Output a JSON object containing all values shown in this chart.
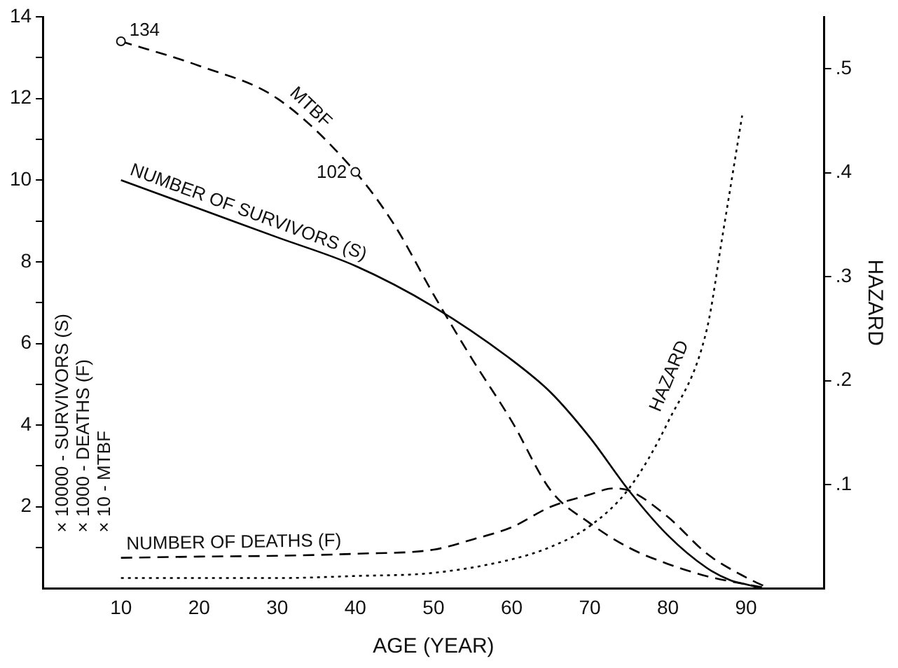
{
  "chart_data": {
    "type": "line",
    "xlabel": "AGE (YEAR)",
    "ylabel": "× 10000 - SURVIVORS (S)\n× 1000 - DEATHS (F)\n× 10 - MTBF",
    "y2label": "HAZARD",
    "xlim": [
      0,
      100
    ],
    "xticks": [
      10,
      20,
      30,
      40,
      50,
      60,
      70,
      80,
      90
    ],
    "ylim": [
      0,
      14
    ],
    "yticks": [
      {
        "value": 1,
        "label": null
      },
      2,
      {
        "value": 3,
        "label": null
      },
      4,
      {
        "value": 5,
        "label": null
      },
      6,
      {
        "value": 7,
        "label": null
      },
      8,
      {
        "value": 9,
        "label": null
      },
      10,
      {
        "value": 11,
        "label": null
      },
      12,
      {
        "value": 13,
        "label": null
      },
      14
    ],
    "y2lim": [
      0,
      0.55
    ],
    "y2ticks": [
      {
        "value": 0.1,
        "label": ".1"
      },
      {
        "value": 0.2,
        "label": ".2"
      },
      {
        "value": 0.3,
        "label": ".3"
      },
      {
        "value": 0.4,
        "label": ".4"
      },
      {
        "value": 0.5,
        "label": ".5"
      }
    ],
    "grid": false,
    "legend": false,
    "marker": "none",
    "series": [
      {
        "name": "NUMBER OF SURVIVORS (S)",
        "color": "#000000",
        "line_style": "solid",
        "x": [
          10,
          20,
          30,
          40,
          50,
          60,
          65,
          70,
          75,
          80,
          85,
          88,
          90,
          92
        ],
        "values": [
          10.0,
          9.3,
          8.6,
          7.9,
          6.9,
          5.6,
          4.8,
          3.7,
          2.4,
          1.3,
          0.5,
          0.2,
          0.1,
          0
        ]
      },
      {
        "name": "MTBF",
        "color": "#000000",
        "line_style": "dashed",
        "x": [
          10,
          20,
          30,
          40,
          45,
          50,
          55,
          60,
          65,
          70,
          75,
          80,
          85,
          90,
          93
        ],
        "values": [
          13.4,
          12.8,
          12.0,
          10.2,
          8.9,
          7.2,
          5.6,
          4.1,
          2.4,
          1.6,
          1.0,
          0.6,
          0.3,
          0.1,
          0
        ]
      },
      {
        "name": "NUMBER OF DEATHS (F)",
        "color": "#000000",
        "line_style": "dashed",
        "x": [
          10,
          20,
          30,
          40,
          50,
          55,
          60,
          65,
          70,
          73,
          75,
          80,
          85,
          90,
          93
        ],
        "values": [
          0.75,
          0.78,
          0.8,
          0.85,
          0.95,
          1.2,
          1.5,
          2.0,
          2.3,
          2.45,
          2.4,
          1.75,
          0.85,
          0.27,
          0
        ]
      },
      {
        "name": "HAZARD",
        "color": "#000000",
        "line_style": "dotted",
        "axis": "y2",
        "x": [
          10,
          20,
          30,
          40,
          50,
          60,
          65,
          70,
          75,
          80,
          85,
          87,
          89.5
        ],
        "values": [
          0.01,
          0.01,
          0.01,
          0.012,
          0.015,
          0.028,
          0.04,
          0.06,
          0.096,
          0.16,
          0.25,
          0.34,
          0.455
        ]
      }
    ],
    "annotations": [
      {
        "text": "134",
        "x": 10,
        "y": 13.4
      },
      {
        "text": "102",
        "x": 40,
        "y": 10.2
      }
    ]
  }
}
